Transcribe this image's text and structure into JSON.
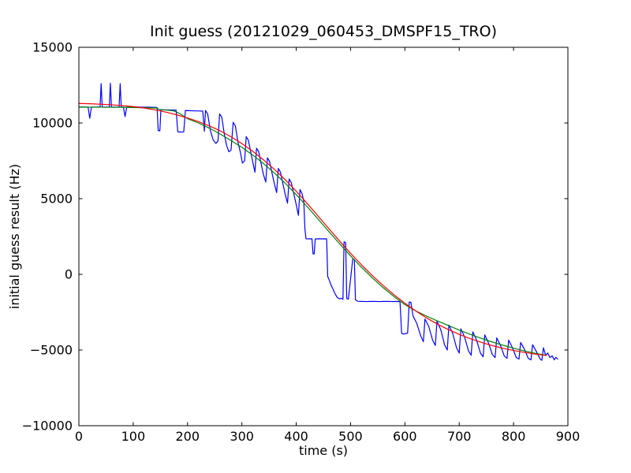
{
  "figure": {
    "background": "#ffffff",
    "spine_color": "#000000"
  },
  "chart_data": {
    "type": "line",
    "title": "Init guess (20121029_060453_DMSPF15_TRO)",
    "xlabel": "time (s)",
    "ylabel": "initial guess result (Hz)",
    "xlim": [
      0,
      900
    ],
    "ylim": [
      -10000,
      15000
    ],
    "xticks": [
      0,
      100,
      200,
      300,
      400,
      500,
      600,
      700,
      800,
      900
    ],
    "xtick_labels": [
      "0",
      "100",
      "200",
      "300",
      "400",
      "500",
      "600",
      "700",
      "800",
      "900"
    ],
    "yticks": [
      -10000,
      -5000,
      0,
      5000,
      10000,
      15000
    ],
    "ytick_labels": [
      "−10000",
      "−5000",
      "0",
      "5000",
      "10000",
      "15000"
    ],
    "grid": false,
    "legend": false,
    "series": [
      {
        "name": "blue-noisy-data",
        "color": "#0000ff",
        "points": [
          [
            0,
            11050
          ],
          [
            6,
            11060
          ],
          [
            12,
            11050
          ],
          [
            17,
            11040
          ],
          [
            20,
            10310
          ],
          [
            23,
            11040
          ],
          [
            30,
            11050
          ],
          [
            36,
            11055
          ],
          [
            39,
            11050
          ],
          [
            41,
            12600
          ],
          [
            43,
            11055
          ],
          [
            50,
            11050
          ],
          [
            56,
            11055
          ],
          [
            58,
            12620
          ],
          [
            60,
            11050
          ],
          [
            67,
            11050
          ],
          [
            74,
            11055
          ],
          [
            76,
            12600
          ],
          [
            78,
            11055
          ],
          [
            82,
            11040
          ],
          [
            85,
            10420
          ],
          [
            88,
            11040
          ],
          [
            95,
            11050
          ],
          [
            103,
            11055
          ],
          [
            111,
            11050
          ],
          [
            119,
            11045
          ],
          [
            127,
            11040
          ],
          [
            134,
            11035
          ],
          [
            141,
            11030
          ],
          [
            144,
            11020
          ],
          [
            146,
            9500
          ],
          [
            149,
            9480
          ],
          [
            151,
            10870
          ],
          [
            158,
            10865
          ],
          [
            166,
            10860
          ],
          [
            173,
            10855
          ],
          [
            179,
            10845
          ],
          [
            182,
            9420
          ],
          [
            187,
            9400
          ],
          [
            193,
            9410
          ],
          [
            196,
            10820
          ],
          [
            203,
            10812
          ],
          [
            210,
            10805
          ],
          [
            217,
            10798
          ],
          [
            223,
            10790
          ],
          [
            228,
            10785
          ],
          [
            231,
            9450
          ],
          [
            233,
            10830
          ],
          [
            237,
            10600
          ],
          [
            242,
            9500
          ],
          [
            247,
            8900
          ],
          [
            252,
            8650
          ],
          [
            256,
            8800
          ],
          [
            259,
            10600
          ],
          [
            263,
            10380
          ],
          [
            268,
            9200
          ],
          [
            272,
            8500
          ],
          [
            276,
            8100
          ],
          [
            280,
            8200
          ],
          [
            284,
            10050
          ],
          [
            288,
            9800
          ],
          [
            293,
            8700
          ],
          [
            297,
            8100
          ],
          [
            301,
            7350
          ],
          [
            305,
            7500
          ],
          [
            308,
            9100
          ],
          [
            312,
            8850
          ],
          [
            317,
            7950
          ],
          [
            321,
            7250
          ],
          [
            324,
            6750
          ],
          [
            327,
            8330
          ],
          [
            331,
            8100
          ],
          [
            336,
            7200
          ],
          [
            340,
            6550
          ],
          [
            344,
            6100
          ],
          [
            347,
            7700
          ],
          [
            351,
            7450
          ],
          [
            356,
            6600
          ],
          [
            360,
            5950
          ],
          [
            364,
            5400
          ],
          [
            367,
            7000
          ],
          [
            371,
            6750
          ],
          [
            376,
            5900
          ],
          [
            380,
            5250
          ],
          [
            384,
            4700
          ],
          [
            387,
            6300
          ],
          [
            391,
            6050
          ],
          [
            396,
            5250
          ],
          [
            400,
            4600
          ],
          [
            404,
            3900
          ],
          [
            407,
            5600
          ],
          [
            411,
            5300
          ],
          [
            414,
            4800
          ],
          [
            416,
            3000
          ],
          [
            418,
            2350
          ],
          [
            424,
            2345
          ],
          [
            429,
            2350
          ],
          [
            431,
            1350
          ],
          [
            433,
            1345
          ],
          [
            435,
            2340
          ],
          [
            441,
            2350
          ],
          [
            447,
            2345
          ],
          [
            452,
            2350
          ],
          [
            456,
            2345
          ],
          [
            458,
            -150
          ],
          [
            461,
            -400
          ],
          [
            464,
            -700
          ],
          [
            468,
            -1000
          ],
          [
            471,
            -1250
          ],
          [
            475,
            -1500
          ],
          [
            479,
            -1620
          ],
          [
            483,
            -1580
          ],
          [
            486,
            -1650
          ],
          [
            488,
            2150
          ],
          [
            491,
            2100
          ],
          [
            493,
            -1600
          ],
          [
            496,
            -1640
          ],
          [
            504,
            1000
          ],
          [
            507,
            980
          ],
          [
            509,
            -1680
          ],
          [
            513,
            -1780
          ],
          [
            521,
            -1790
          ],
          [
            529,
            -1800
          ],
          [
            537,
            -1790
          ],
          [
            545,
            -1790
          ],
          [
            553,
            -1800
          ],
          [
            561,
            -1790
          ],
          [
            569,
            -1790
          ],
          [
            577,
            -1800
          ],
          [
            585,
            -1790
          ],
          [
            591,
            -1800
          ],
          [
            594,
            -3900
          ],
          [
            597,
            -3950
          ],
          [
            601,
            -3920
          ],
          [
            605,
            -3880
          ],
          [
            608,
            -1830
          ],
          [
            611,
            -1850
          ],
          [
            615,
            -2750
          ],
          [
            622,
            -3250
          ],
          [
            629,
            -4050
          ],
          [
            634,
            -4450
          ],
          [
            637,
            -2950
          ],
          [
            644,
            -3450
          ],
          [
            651,
            -4350
          ],
          [
            656,
            -4700
          ],
          [
            659,
            -3100
          ],
          [
            666,
            -3650
          ],
          [
            673,
            -4650
          ],
          [
            678,
            -5000
          ],
          [
            681,
            -3350
          ],
          [
            688,
            -3900
          ],
          [
            695,
            -4850
          ],
          [
            700,
            -5200
          ],
          [
            703,
            -3600
          ],
          [
            710,
            -4150
          ],
          [
            717,
            -5050
          ],
          [
            722,
            -5350
          ],
          [
            725,
            -3800
          ],
          [
            732,
            -4350
          ],
          [
            739,
            -5200
          ],
          [
            744,
            -5450
          ],
          [
            747,
            -4000
          ],
          [
            754,
            -4550
          ],
          [
            761,
            -5300
          ],
          [
            766,
            -5500
          ],
          [
            769,
            -4200
          ],
          [
            776,
            -4700
          ],
          [
            783,
            -5400
          ],
          [
            788,
            -5550
          ],
          [
            791,
            -4350
          ],
          [
            798,
            -4850
          ],
          [
            805,
            -5500
          ],
          [
            810,
            -5600
          ],
          [
            813,
            -4500
          ],
          [
            820,
            -4950
          ],
          [
            827,
            -5550
          ],
          [
            832,
            -5650
          ],
          [
            835,
            -4650
          ],
          [
            842,
            -5100
          ],
          [
            849,
            -5600
          ],
          [
            852,
            -5680
          ],
          [
            855,
            -4850
          ],
          [
            859,
            -5350
          ],
          [
            863,
            -5200
          ],
          [
            867,
            -5500
          ],
          [
            871,
            -5380
          ],
          [
            875,
            -5650
          ],
          [
            878,
            -5480
          ],
          [
            881,
            -5600
          ]
        ]
      },
      {
        "name": "green-smoothed-fit",
        "color": "#008000",
        "points": [
          [
            0,
            11050
          ],
          [
            40,
            11044
          ],
          [
            80,
            11035
          ],
          [
            120,
            11010
          ],
          [
            143,
            10990
          ],
          [
            148,
            10890
          ],
          [
            160,
            10855
          ],
          [
            172,
            10815
          ],
          [
            178,
            10755
          ],
          [
            185,
            10635
          ],
          [
            200,
            10280
          ],
          [
            220,
            10000
          ],
          [
            240,
            9660
          ],
          [
            260,
            9270
          ],
          [
            280,
            8840
          ],
          [
            300,
            8390
          ],
          [
            320,
            7880
          ],
          [
            340,
            7310
          ],
          [
            360,
            6690
          ],
          [
            380,
            6010
          ],
          [
            400,
            5270
          ],
          [
            420,
            4480
          ],
          [
            440,
            3660
          ],
          [
            460,
            2830
          ],
          [
            480,
            2010
          ],
          [
            500,
            1220
          ],
          [
            520,
            470
          ],
          [
            540,
            -230
          ],
          [
            560,
            -880
          ],
          [
            580,
            -1470
          ],
          [
            600,
            -2000
          ],
          [
            620,
            -2420
          ],
          [
            640,
            -2760
          ],
          [
            660,
            -3080
          ],
          [
            680,
            -3380
          ],
          [
            700,
            -3680
          ],
          [
            720,
            -3960
          ],
          [
            740,
            -4220
          ],
          [
            760,
            -4460
          ],
          [
            780,
            -4680
          ],
          [
            800,
            -4880
          ],
          [
            820,
            -5060
          ],
          [
            840,
            -5220
          ],
          [
            860,
            -5350
          ]
        ]
      },
      {
        "name": "red-model-fit",
        "color": "#ff0000",
        "points": [
          [
            0,
            11290
          ],
          [
            20,
            11270
          ],
          [
            40,
            11240
          ],
          [
            60,
            11200
          ],
          [
            80,
            11150
          ],
          [
            100,
            11080
          ],
          [
            120,
            10990
          ],
          [
            140,
            10870
          ],
          [
            160,
            10720
          ],
          [
            180,
            10540
          ],
          [
            200,
            10330
          ],
          [
            220,
            10090
          ],
          [
            240,
            9810
          ],
          [
            260,
            9480
          ],
          [
            280,
            9090
          ],
          [
            300,
            8640
          ],
          [
            320,
            8130
          ],
          [
            340,
            7560
          ],
          [
            360,
            6930
          ],
          [
            380,
            6240
          ],
          [
            400,
            5490
          ],
          [
            420,
            4690
          ],
          [
            440,
            3860
          ],
          [
            460,
            3020
          ],
          [
            480,
            2190
          ],
          [
            500,
            1390
          ],
          [
            520,
            630
          ],
          [
            540,
            -80
          ],
          [
            560,
            -740
          ],
          [
            580,
            -1350
          ],
          [
            600,
            -1910
          ],
          [
            620,
            -2420
          ],
          [
            640,
            -2880
          ],
          [
            660,
            -3290
          ],
          [
            680,
            -3650
          ],
          [
            700,
            -3970
          ],
          [
            720,
            -4250
          ],
          [
            740,
            -4490
          ],
          [
            760,
            -4700
          ],
          [
            780,
            -4880
          ],
          [
            800,
            -5030
          ],
          [
            820,
            -5160
          ],
          [
            840,
            -5270
          ],
          [
            860,
            -5360
          ]
        ]
      }
    ]
  }
}
